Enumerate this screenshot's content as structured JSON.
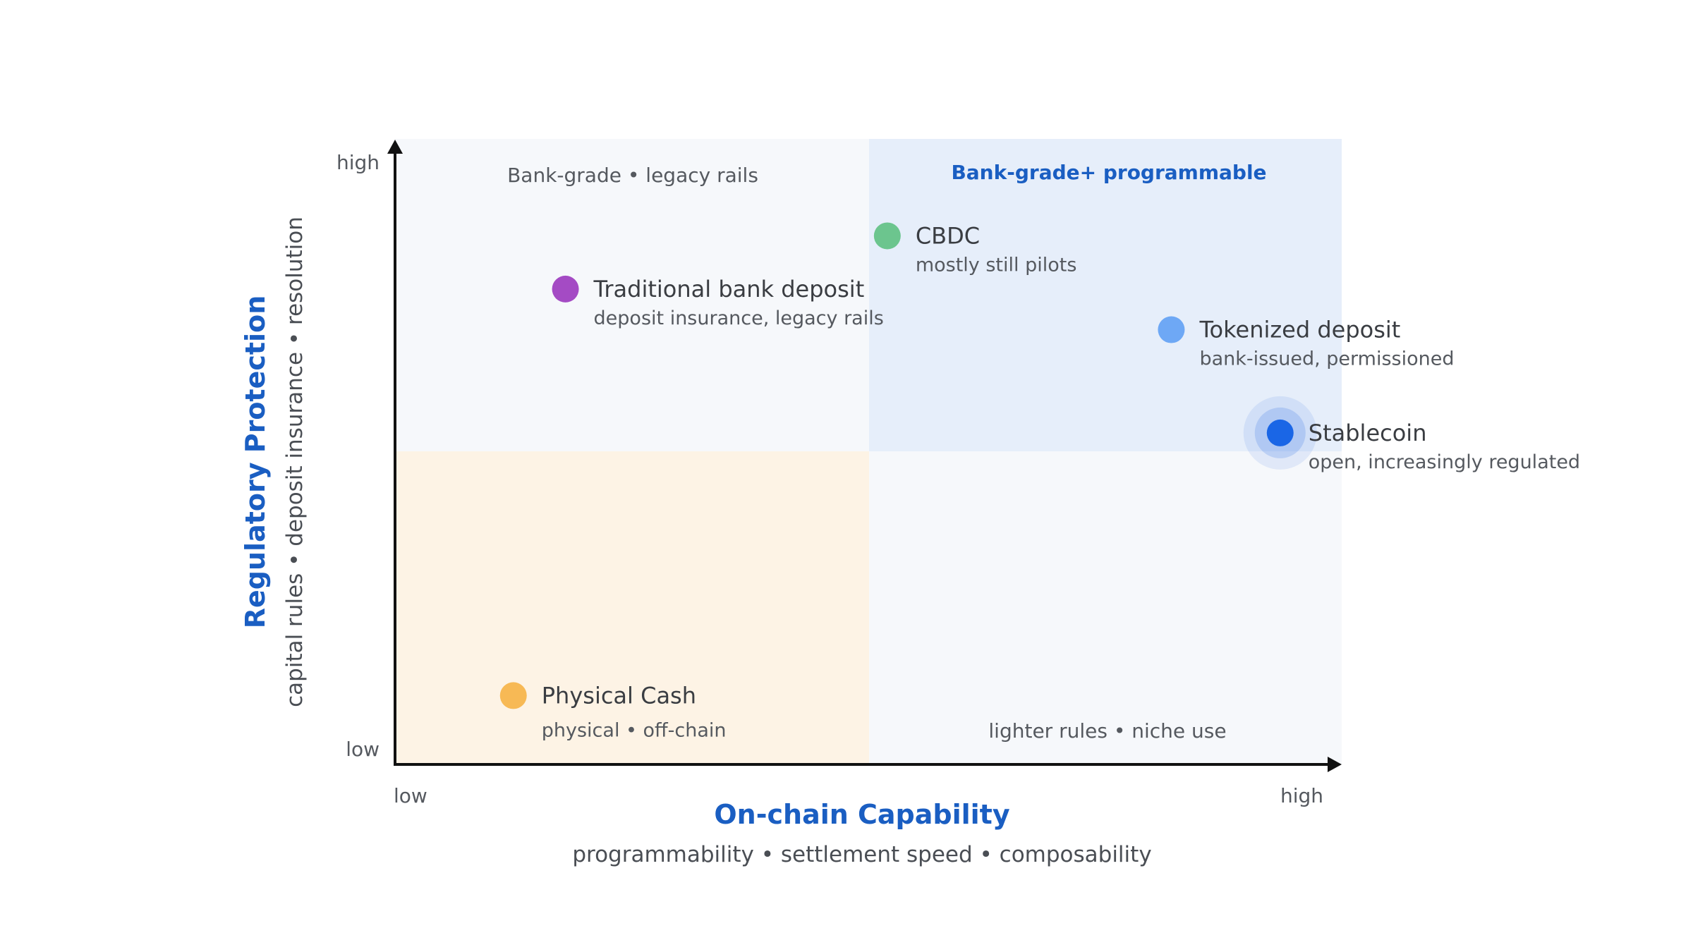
{
  "quadrants": {
    "top_left": "Bank-grade • legacy rails",
    "top_right": "Bank-grade+ programmable",
    "bottom_right": "lighter rules • niche use"
  },
  "x_axis": {
    "title": "On-chain Capability",
    "subtitle": "programmability • settlement speed • composability",
    "low": "low",
    "high": "high"
  },
  "y_axis": {
    "title": "Regulatory Protection",
    "subtitle": "capital rules • deposit insurance • resolution",
    "low": "low",
    "high": "high"
  },
  "points": [
    {
      "name": "Traditional bank deposit",
      "note": "deposit  insurance, legacy rails",
      "x": 0.18,
      "y": 0.76,
      "color": "#a44bc4"
    },
    {
      "name": "CBDC",
      "note": "mostly still pilots",
      "x": 0.52,
      "y": 0.845,
      "color": "#6cc58e"
    },
    {
      "name": "Tokenized deposit",
      "note": "bank-issued, permissioned",
      "x": 0.82,
      "y": 0.695,
      "color": "#6ea8f5"
    },
    {
      "name": "Stablecoin",
      "note": "open, increasingly regulated",
      "x": 0.935,
      "y": 0.53,
      "color": "#1a66e6"
    },
    {
      "name": "Physical Cash",
      "note": "physical • off-chain",
      "x": 0.125,
      "y": 0.11,
      "color": "#f7b955"
    }
  ],
  "colors": {
    "accent": "#1a5ec2",
    "quadrant_bg": "#f6f8fb",
    "quadrant_highlight": "#e6eefa",
    "quadrant_warm": "#fdf3e5"
  }
}
